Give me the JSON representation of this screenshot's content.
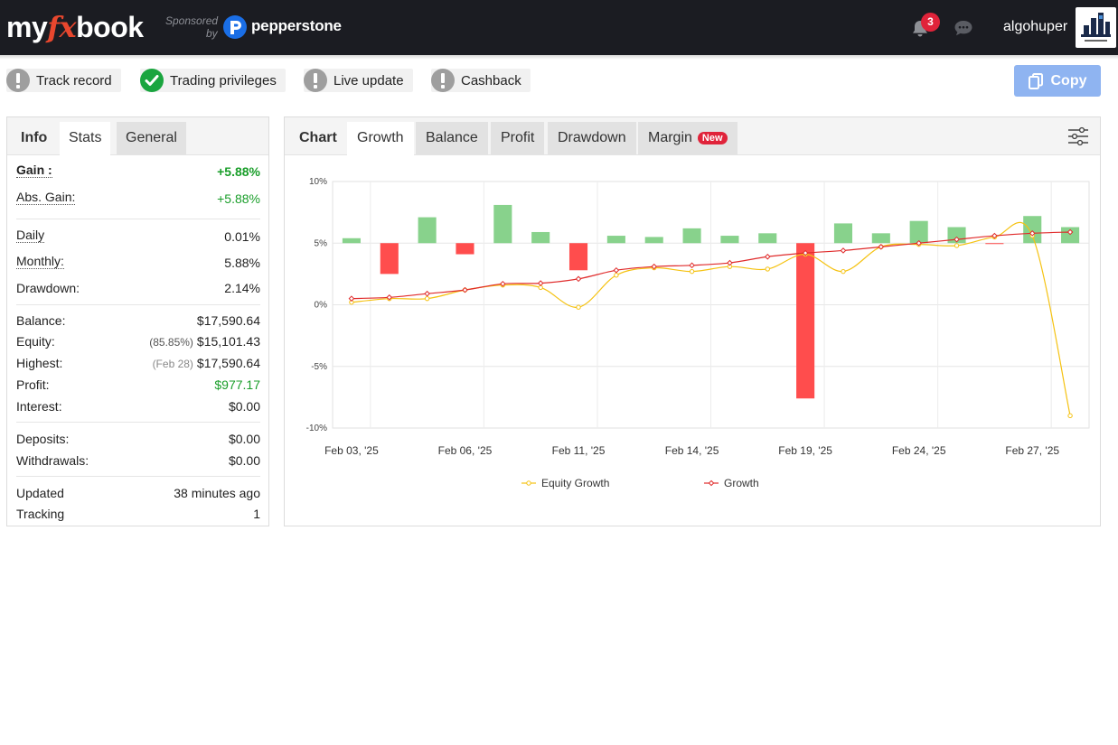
{
  "header": {
    "logo": {
      "my": "my",
      "fx": "fx",
      "book": "book"
    },
    "sponsored_label": "Sponsored",
    "sponsored_by": "by",
    "sponsor_name": "pepperstone",
    "notifications_count": "3",
    "username": "algohuper",
    "icons": {
      "notifications": "bell-icon",
      "messages": "chat-bubble-icon",
      "sponsor": "pepperstone-logo"
    }
  },
  "privileges": [
    {
      "label": "Track record",
      "status": "warning"
    },
    {
      "label": "Trading privileges",
      "status": "ok"
    },
    {
      "label": "Live update",
      "status": "warning"
    },
    {
      "label": "Cashback",
      "status": "warning"
    }
  ],
  "copy_button": {
    "label": "Copy",
    "icon": "copy-icon",
    "color": "#8fb4f1"
  },
  "stats_panel": {
    "tabs": [
      "Info",
      "Stats",
      "General"
    ],
    "active_tab": "Stats",
    "gain": {
      "label": "Gain :",
      "value": "+5.88%"
    },
    "abs_gain": {
      "label": "Abs. Gain:",
      "value": "+5.88%"
    },
    "daily": {
      "label": "Daily",
      "value": "0.01%"
    },
    "monthly": {
      "label": "Monthly:",
      "value": "5.88%"
    },
    "drawdown": {
      "label": "Drawdown:",
      "value": "2.14%"
    },
    "balance": {
      "label": "Balance:",
      "value": "$17,590.64"
    },
    "equity": {
      "label": "Equity:",
      "sub": "(85.85%)",
      "value": "$15,101.43"
    },
    "highest": {
      "label": "Highest:",
      "sub": "(Feb 28)",
      "value": "$17,590.64"
    },
    "profit": {
      "label": "Profit:",
      "value": "$977.17"
    },
    "interest": {
      "label": "Interest:",
      "value": "$0.00"
    },
    "deposits": {
      "label": "Deposits:",
      "value": "$0.00"
    },
    "withdrawals": {
      "label": "Withdrawals:",
      "value": "$0.00"
    },
    "updated": {
      "label": "Updated",
      "value": "38 minutes ago"
    },
    "tracking": {
      "label": "Tracking",
      "value": "1"
    }
  },
  "chart_panel": {
    "tabs": [
      "Chart",
      "Growth",
      "Balance",
      "Profit",
      "Drawdown",
      "Margin"
    ],
    "active_tab": "Growth",
    "margin_badge": "New",
    "settings_icon": "sliders-icon"
  },
  "chart_data": {
    "type": "line",
    "ylim": [
      -10,
      10
    ],
    "y_ticks": [
      "10%",
      "5%",
      "0%",
      "-5%",
      "-10%"
    ],
    "x_tick_labels": [
      "Feb 03, '25",
      "Feb 06, '25",
      "Feb 11, '25",
      "Feb 14, '25",
      "Feb 19, '25",
      "Feb 24, '25",
      "Feb 27, '25"
    ],
    "grid": true,
    "legend_position": "bottom",
    "bars": {
      "type": "bar",
      "baseline": 5,
      "positive_color": "#88d28c",
      "negative_color": "#ff4d4d",
      "values": [
        5.4,
        2.5,
        7.1,
        4.1,
        8.1,
        5.9,
        2.8,
        5.6,
        5.5,
        6.2,
        5.6,
        5.8,
        -7.6,
        6.6,
        5.8,
        6.8,
        6.3,
        4.95,
        7.2,
        6.3
      ]
    },
    "series": [
      {
        "name": "Equity Growth",
        "color": "#f5c211",
        "values": [
          0.2,
          0.5,
          0.5,
          1.2,
          1.6,
          1.4,
          -0.2,
          2.4,
          3.0,
          2.7,
          3.1,
          2.9,
          4.1,
          2.7,
          4.7,
          4.9,
          4.8,
          5.5,
          5.6,
          -9.0
        ]
      },
      {
        "name": "Growth",
        "color": "#e02b2b",
        "values": [
          0.5,
          0.6,
          0.9,
          1.2,
          1.7,
          1.75,
          2.1,
          2.8,
          3.1,
          3.2,
          3.4,
          3.9,
          4.2,
          4.4,
          4.7,
          5.0,
          5.3,
          5.6,
          5.8,
          5.9
        ]
      }
    ]
  }
}
